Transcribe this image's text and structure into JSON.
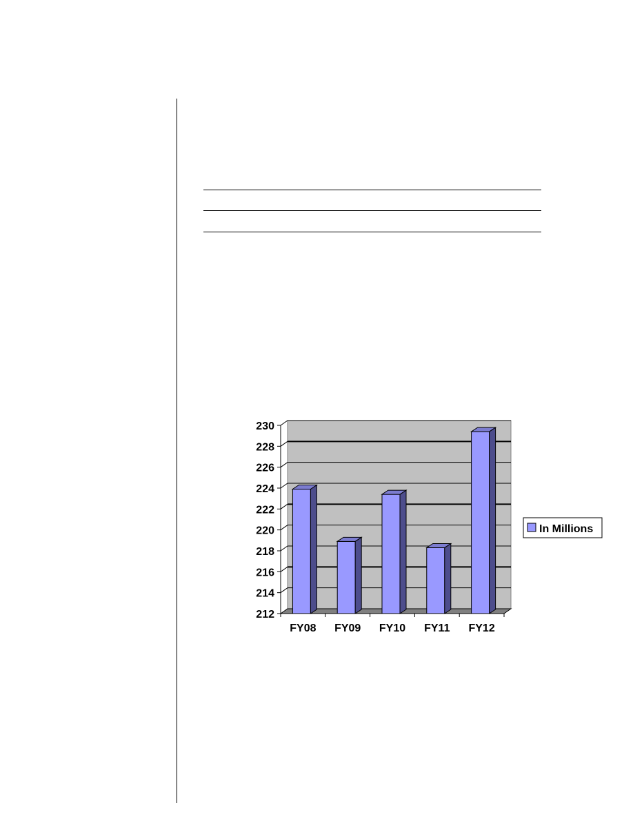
{
  "chart_data": {
    "type": "bar",
    "title": "",
    "xlabel": "",
    "ylabel": "",
    "categories": [
      "FY08",
      "FY09",
      "FY10",
      "FY11",
      "FY12"
    ],
    "series": [
      {
        "name": "In Millions",
        "values": [
          223.9,
          218.9,
          223.4,
          218.3,
          229.4
        ]
      }
    ],
    "ylim": [
      212,
      230
    ],
    "yticks": [
      "212",
      "214",
      "216",
      "218",
      "220",
      "222",
      "224",
      "226",
      "228",
      "230"
    ],
    "grid": true,
    "legend_position": "right",
    "colors": {
      "bar_front": "#9999ff",
      "bar_side": "#4d4d8c",
      "bar_top": "#7c7cd0",
      "plot_back": "#c0c0c0",
      "floor": "#808080"
    }
  }
}
